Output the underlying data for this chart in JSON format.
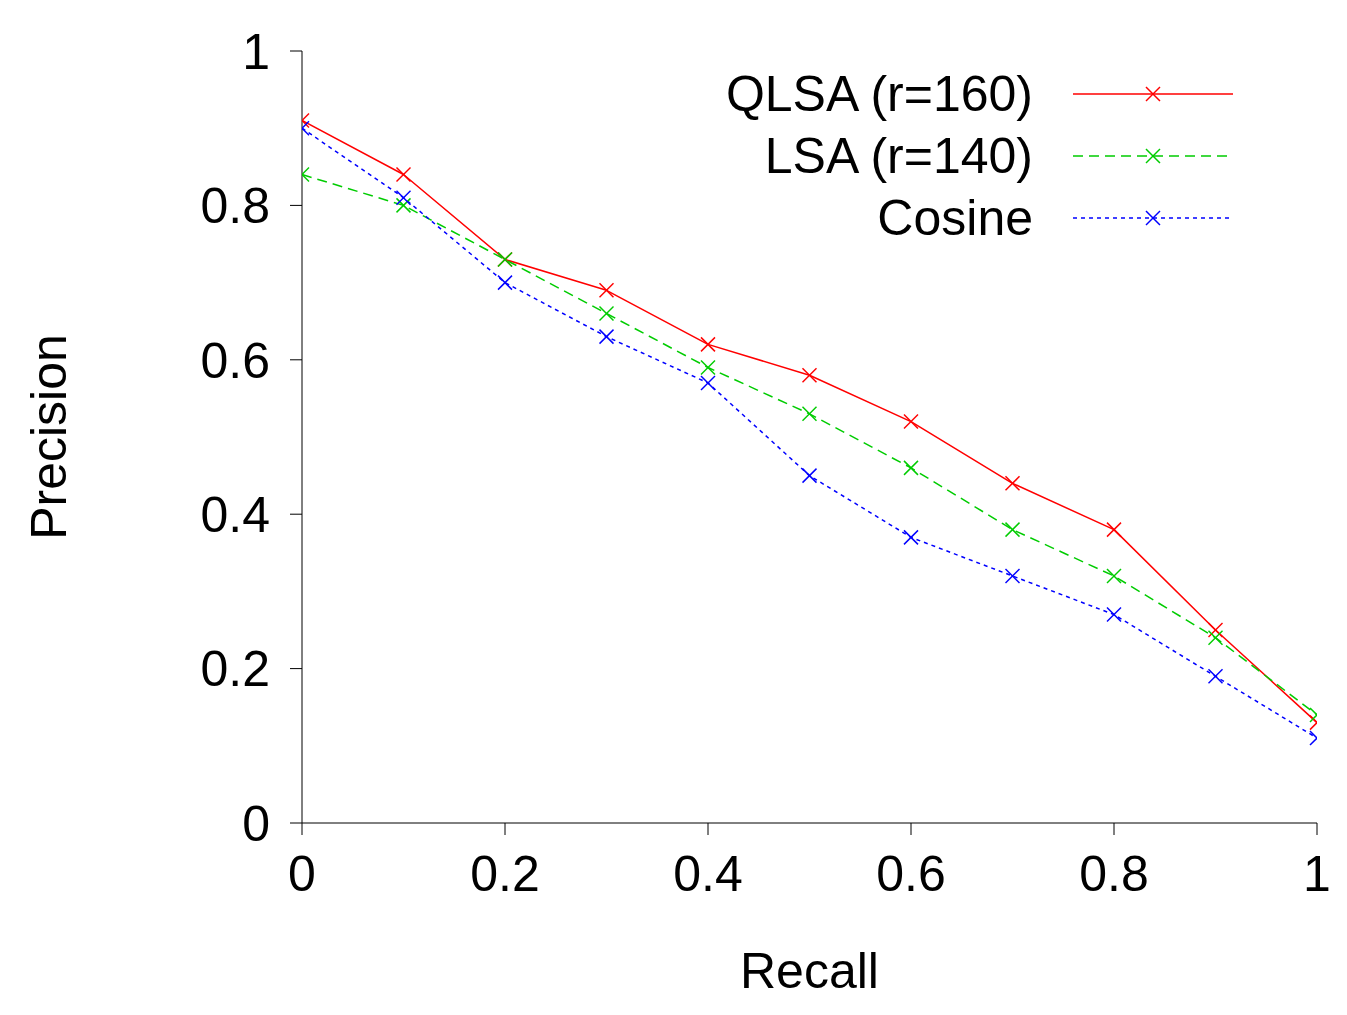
{
  "chart_data": {
    "type": "line",
    "xlabel": "Recall",
    "ylabel": "Precision",
    "x": [
      0,
      0.1,
      0.2,
      0.3,
      0.4,
      0.5,
      0.6,
      0.7,
      0.8,
      0.9,
      1
    ],
    "series": [
      {
        "name": "QLSA (r=160)",
        "color": "#ff0000",
        "line_style": "solid",
        "marker": "cross",
        "values": [
          0.91,
          0.84,
          0.73,
          0.69,
          0.62,
          0.58,
          0.52,
          0.44,
          0.38,
          0.25,
          0.13
        ]
      },
      {
        "name": "LSA (r=140)",
        "color": "#00cc00",
        "line_style": "dashed",
        "marker": "cross",
        "values": [
          0.84,
          0.8,
          0.73,
          0.66,
          0.59,
          0.53,
          0.46,
          0.38,
          0.32,
          0.24,
          0.14
        ]
      },
      {
        "name": "Cosine",
        "color": "#0000ff",
        "line_style": "dotted",
        "marker": "cross",
        "values": [
          0.9,
          0.81,
          0.7,
          0.63,
          0.57,
          0.45,
          0.37,
          0.32,
          0.27,
          0.19,
          0.11
        ]
      }
    ],
    "xlim": [
      0,
      1
    ],
    "xticks": [
      0,
      0.2,
      0.4,
      0.6,
      0.8,
      1
    ],
    "ylim": [
      0,
      1
    ],
    "yticks": [
      0,
      0.2,
      0.4,
      0.6,
      0.8,
      1
    ],
    "grid": false,
    "legend": "top right"
  }
}
